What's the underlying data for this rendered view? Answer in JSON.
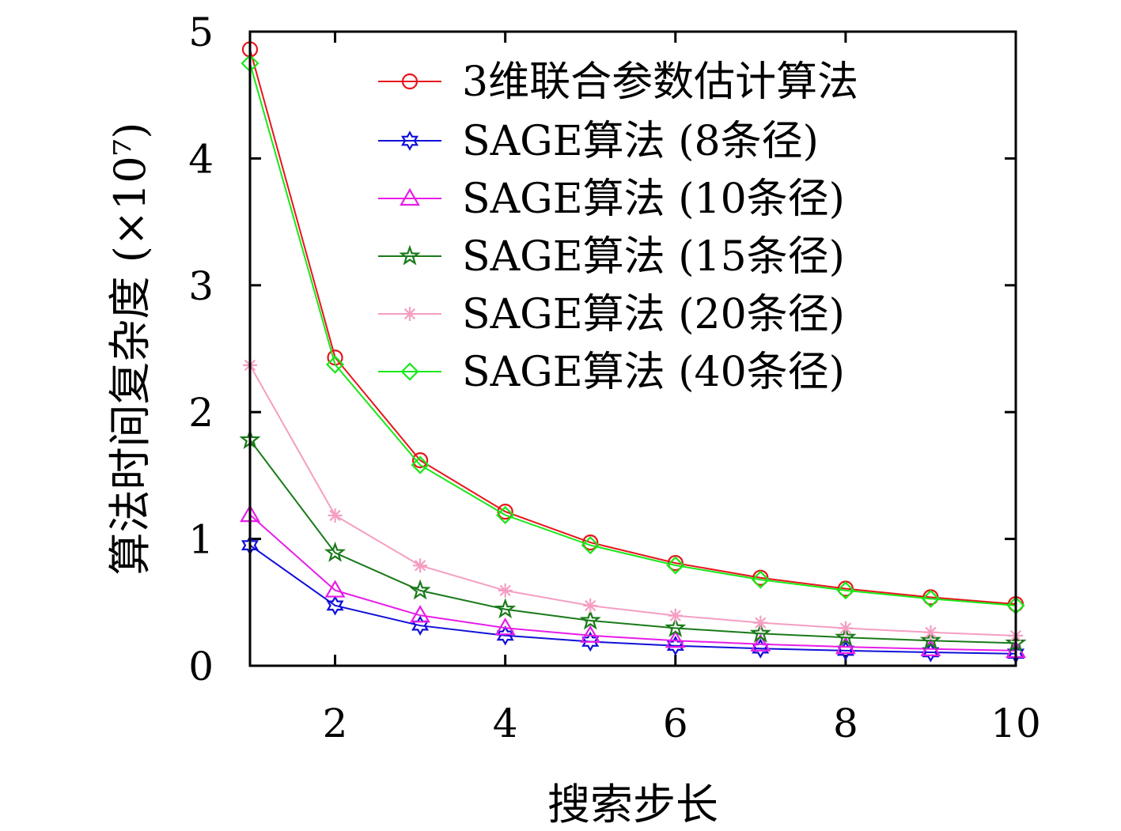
{
  "chart_data": {
    "type": "line",
    "title": "",
    "xlabel": "搜索步长",
    "ylabel": "算法时间复杂度 (×10⁷)",
    "xlim": [
      1,
      10
    ],
    "ylim": [
      0,
      5
    ],
    "x_ticks": [
      "2",
      "4",
      "6",
      "8",
      "10"
    ],
    "y_ticks": [
      "0",
      "1",
      "2",
      "3",
      "4",
      "5"
    ],
    "grid": false,
    "legend_position": "top-right",
    "x": [
      1,
      2,
      3,
      4,
      5,
      6,
      7,
      8,
      9,
      10
    ],
    "series": [
      {
        "name": "3维联合参数估计算法",
        "color": "#e8141c",
        "marker": "circle",
        "values": [
          4.86,
          2.43,
          1.62,
          1.215,
          0.972,
          0.81,
          0.694,
          0.608,
          0.54,
          0.486
        ]
      },
      {
        "name": "SAGE算法 (8条径)",
        "color": "#1010d8",
        "marker": "hexagram",
        "values": [
          0.95,
          0.475,
          0.317,
          0.238,
          0.19,
          0.158,
          0.136,
          0.119,
          0.106,
          0.095
        ]
      },
      {
        "name": "SAGE算法 (10条径)",
        "color": "#e81ce8",
        "marker": "triangle",
        "values": [
          1.19,
          0.595,
          0.397,
          0.298,
          0.238,
          0.198,
          0.17,
          0.149,
          0.132,
          0.119
        ]
      },
      {
        "name": "SAGE算法 (15条径)",
        "color": "#1a7a1a",
        "marker": "star",
        "values": [
          1.78,
          0.89,
          0.593,
          0.445,
          0.356,
          0.297,
          0.254,
          0.223,
          0.198,
          0.178
        ]
      },
      {
        "name": "SAGE算法 (20条径)",
        "color": "#f59ec2",
        "marker": "asterisk",
        "values": [
          2.37,
          1.185,
          0.79,
          0.593,
          0.474,
          0.395,
          0.339,
          0.296,
          0.263,
          0.237
        ]
      },
      {
        "name": "SAGE算法 (40条径)",
        "color": "#18e818",
        "marker": "diamond",
        "values": [
          4.75,
          2.375,
          1.583,
          1.188,
          0.95,
          0.792,
          0.679,
          0.594,
          0.528,
          0.475
        ]
      }
    ]
  }
}
